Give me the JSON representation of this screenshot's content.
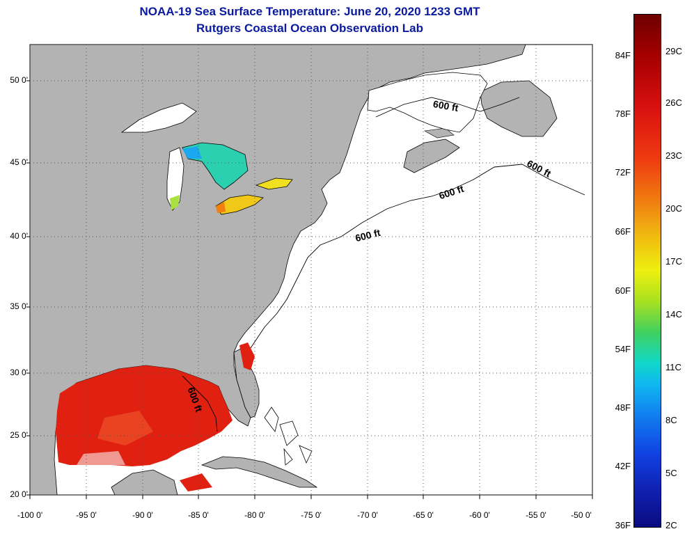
{
  "header": {
    "title_line1": "NOAA-19 Sea Surface Temperature:  June 20, 2020 1233 GMT",
    "title_line2": "Rutgers Coastal Ocean Observation Lab"
  },
  "map": {
    "lat_labels": [
      "50 0'",
      "45 0'",
      "40 0'",
      "35 0'",
      "30 0'",
      "25 0'",
      "20 0'"
    ],
    "lon_labels": [
      "-100 0'",
      "-95 0'",
      "-90 0'",
      "-85 0'",
      "-80 0'",
      "-75 0'",
      "-70 0'",
      "-65 0'",
      "-60 0'",
      "-55 0'",
      "-50 0'"
    ],
    "contour_label": "600 ft",
    "colors": {
      "land": "#b3b3b3",
      "ocean": "#ffffff",
      "gulf_sst": "#e02010",
      "lake_erie": "#f0c818",
      "lake_huron": "#2ad0b0",
      "lake_superior": "#ffffff"
    }
  },
  "colorbar": {
    "fahrenheit": [
      "84F",
      "78F",
      "72F",
      "66F",
      "60F",
      "54F",
      "48F",
      "42F",
      "36F"
    ],
    "celsius": [
      "29C",
      "26C",
      "23C",
      "20C",
      "17C",
      "14C",
      "11C",
      "8C",
      "5C",
      "2C"
    ]
  }
}
